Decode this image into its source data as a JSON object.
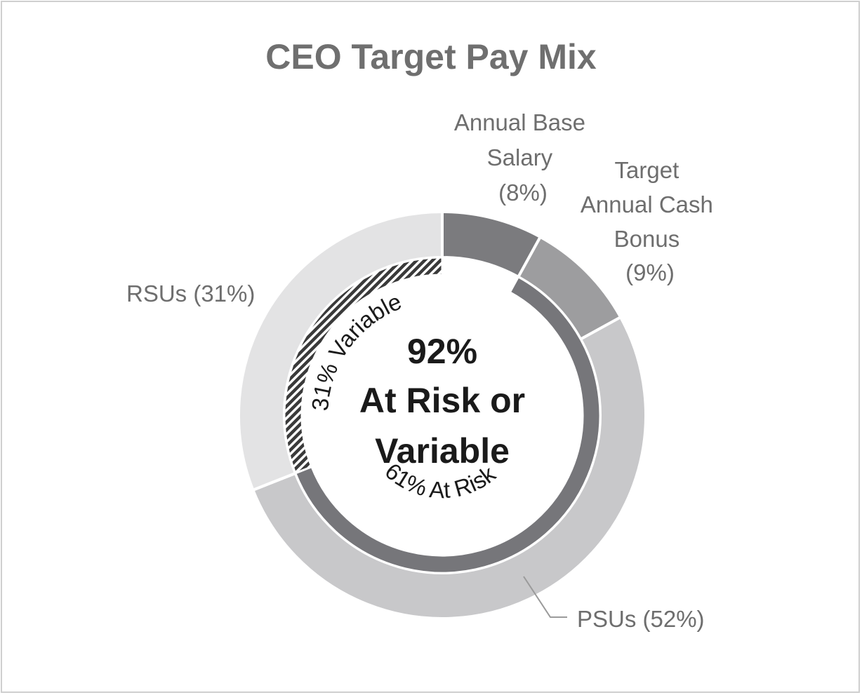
{
  "chart_data": {
    "type": "pie",
    "title": "CEO Target Pay Mix",
    "outer_ring": {
      "slices": [
        {
          "label": "Annual Base Salary (8%)",
          "lines": [
            "Annual Base",
            "Salary",
            "(8%)"
          ],
          "value": 8,
          "color": "#7b7b7e"
        },
        {
          "label": "Target Annual Cash Bonus (9%)",
          "lines": [
            "Target",
            "Annual Cash",
            "Bonus",
            "(9%)"
          ],
          "value": 9,
          "color": "#9d9d9f"
        },
        {
          "label": "PSUs (52%)",
          "lines": [
            "PSUs (52%)"
          ],
          "value": 52,
          "color": "#c8c8ca"
        },
        {
          "label": "RSUs (31%)",
          "lines": [
            "RSUs (31%)"
          ],
          "value": 31,
          "color": "#e3e3e4"
        }
      ]
    },
    "inner_ring": {
      "segments": [
        {
          "label": "31% Variable",
          "start": 69,
          "end": 100,
          "pattern": "hatched"
        },
        {
          "label": "61% At Risk",
          "start": 8,
          "end": 69,
          "color": "#76767a"
        }
      ]
    },
    "center_text": [
      "92%",
      "At Risk or",
      "Variable"
    ]
  }
}
